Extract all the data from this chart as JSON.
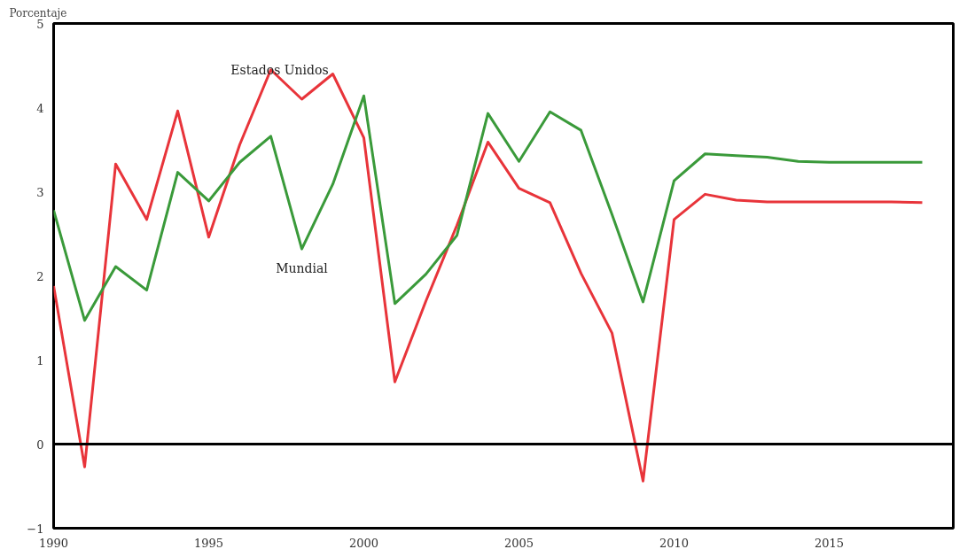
{
  "chart_data": {
    "type": "line",
    "ylabel": "Porcentaje",
    "x": [
      1990,
      1991,
      1992,
      1993,
      1994,
      1995,
      1996,
      1997,
      1998,
      1999,
      2000,
      2001,
      2002,
      2003,
      2004,
      2005,
      2006,
      2007,
      2008,
      2009,
      2010,
      2011,
      2012,
      2013,
      2014,
      2015,
      2016,
      2017,
      2018
    ],
    "series": [
      {
        "name": "Estados Unidos",
        "color": "#e8343a",
        "values": [
          1.88,
          -0.27,
          3.33,
          2.67,
          3.96,
          2.46,
          3.56,
          4.45,
          4.1,
          4.4,
          3.64,
          0.74,
          1.7,
          2.6,
          3.59,
          3.04,
          2.87,
          2.03,
          1.32,
          -0.44,
          2.67,
          2.97,
          2.9,
          2.88,
          2.88,
          2.88,
          2.88,
          2.88,
          2.87
        ]
      },
      {
        "name": "Mundial",
        "color": "#3a9a3a",
        "values": [
          2.78,
          1.47,
          2.11,
          1.83,
          3.23,
          2.89,
          3.35,
          3.66,
          2.32,
          3.09,
          4.14,
          1.67,
          2.02,
          2.48,
          3.93,
          3.36,
          3.95,
          3.73,
          2.73,
          1.69,
          3.13,
          3.45,
          3.43,
          3.41,
          3.36,
          3.35,
          3.35,
          3.35,
          3.35
        ]
      }
    ],
    "xlim": [
      1990,
      2019
    ],
    "ylim": [
      -1,
      5
    ],
    "xticks": [
      1990,
      1995,
      2000,
      2005,
      2010,
      2015
    ],
    "yticks": [
      -1,
      0,
      1,
      2,
      3,
      4,
      5
    ],
    "ref_lines": [
      {
        "axis": "y",
        "value": 0,
        "color": "#000000"
      }
    ],
    "grid": false,
    "marker": "none",
    "line_style": "solid"
  }
}
